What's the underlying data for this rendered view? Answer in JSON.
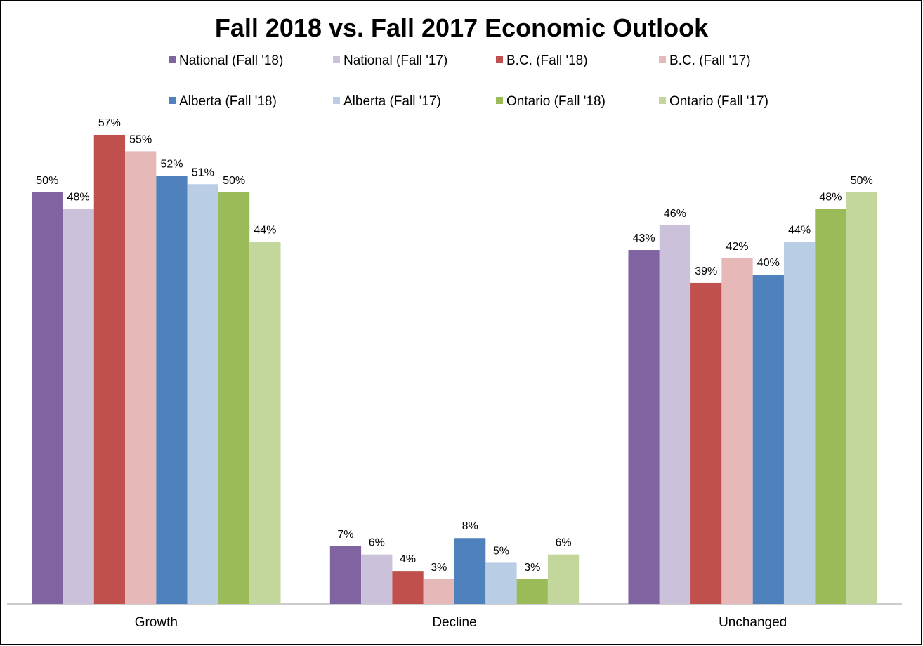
{
  "chart_data": {
    "type": "bar",
    "title": "Fall 2018 vs. Fall 2017 Economic Outlook",
    "categories": [
      "Growth",
      "Decline",
      "Unchanged"
    ],
    "series": [
      {
        "name": "National (Fall '18)",
        "color": "#8064A2",
        "values": [
          50,
          7,
          43
        ],
        "labels": [
          "50%",
          "7%",
          "43%"
        ]
      },
      {
        "name": "National (Fall '17)",
        "color": "#CCC1DA",
        "values": [
          48,
          6,
          46
        ],
        "labels": [
          "48%",
          "6%",
          "46%"
        ]
      },
      {
        "name": "B.C. (Fall '18)",
        "color": "#C0504D",
        "values": [
          57,
          4,
          39
        ],
        "labels": [
          "57%",
          "4%",
          "39%"
        ]
      },
      {
        "name": "B.C. (Fall '17)",
        "color": "#E6B9B8",
        "values": [
          55,
          3,
          42
        ],
        "labels": [
          "55%",
          "3%",
          "42%"
        ]
      },
      {
        "name": "Alberta (Fall '18)",
        "color": "#4F81BD",
        "values": [
          52,
          8,
          40
        ],
        "labels": [
          "52%",
          "8%",
          "40%"
        ]
      },
      {
        "name": "Alberta (Fall '17)",
        "color": "#B9CDE5",
        "values": [
          51,
          5,
          44
        ],
        "labels": [
          "51%",
          "5%",
          "44%"
        ]
      },
      {
        "name": "Ontario (Fall '18)",
        "color": "#9BBB59",
        "values": [
          50,
          3,
          48
        ],
        "labels": [
          "50%",
          "3%",
          "48%"
        ]
      },
      {
        "name": "Ontario (Fall '17)",
        "color": "#C3D69B",
        "values": [
          44,
          6,
          50
        ],
        "labels": [
          "44%",
          "6%",
          "50%"
        ]
      }
    ],
    "ylim": [
      0,
      60
    ],
    "grid": false,
    "legend_position": "top"
  }
}
